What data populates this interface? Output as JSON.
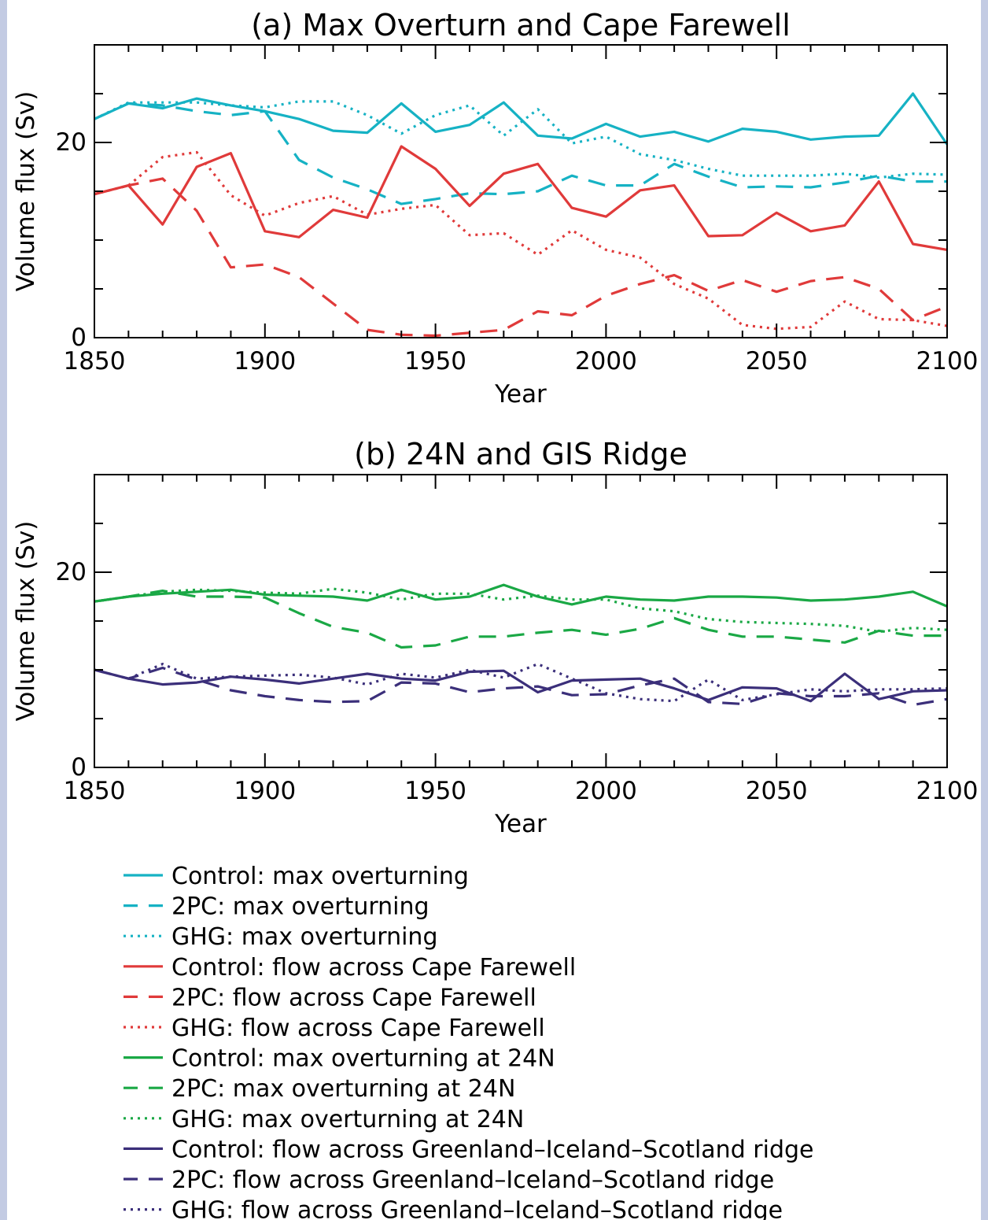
{
  "chart_data": [
    {
      "type": "line",
      "title": "(a) Max Overturn and Cape Farewell",
      "xlabel": "Year",
      "ylabel": "Volume flux (Sv)",
      "xlim": [
        1850,
        2100
      ],
      "ylim": [
        0,
        30
      ],
      "xticks": [
        "1850",
        "1900",
        "1950",
        "2000",
        "2050",
        "2100"
      ],
      "yticks": [
        "0",
        "20"
      ],
      "x": [
        1850,
        1860,
        1870,
        1880,
        1890,
        1900,
        1910,
        1920,
        1930,
        1940,
        1950,
        1960,
        1970,
        1980,
        1990,
        2000,
        2010,
        2020,
        2030,
        2040,
        2050,
        2060,
        2070,
        2080,
        2090,
        2100
      ],
      "series": [
        {
          "name": "Control: max overturning",
          "color": "#16b2c4",
          "dash": "solid",
          "values": [
            22.4,
            24.0,
            23.5,
            24.5,
            23.8,
            23.2,
            22.4,
            21.2,
            21.0,
            24.0,
            21.1,
            21.8,
            24.1,
            20.7,
            20.4,
            21.9,
            20.6,
            21.1,
            20.1,
            21.4,
            21.1,
            20.3,
            20.6,
            20.7,
            25.0,
            19.8
          ]
        },
        {
          "name": "2PC: max overturning",
          "color": "#16b2c4",
          "dash": "dashed",
          "values": [
            22.4,
            24.0,
            23.8,
            23.2,
            22.8,
            23.2,
            18.2,
            16.4,
            15.2,
            13.7,
            14.2,
            14.8,
            14.7,
            15.0,
            16.6,
            15.6,
            15.6,
            17.8,
            16.5,
            15.4,
            15.5,
            15.4,
            15.9,
            16.6,
            16.0,
            16.0
          ]
        },
        {
          "name": "GHG: max overturning",
          "color": "#16b2c4",
          "dash": "dotted",
          "values": [
            22.4,
            24.1,
            24.1,
            24.1,
            23.8,
            23.6,
            24.2,
            24.2,
            22.8,
            20.9,
            22.8,
            23.8,
            20.7,
            23.4,
            19.9,
            20.6,
            18.8,
            18.2,
            17.3,
            16.6,
            16.6,
            16.6,
            16.8,
            16.4,
            16.8,
            16.7
          ]
        },
        {
          "name": "Control: flow across Cape Farewell",
          "color": "#e03a3a",
          "dash": "solid",
          "values": [
            14.7,
            15.6,
            11.6,
            17.5,
            18.9,
            10.9,
            10.3,
            13.1,
            12.3,
            19.6,
            17.3,
            13.5,
            16.8,
            17.8,
            13.3,
            12.4,
            15.1,
            15.6,
            10.4,
            10.5,
            12.8,
            10.9,
            11.5,
            16.0,
            9.6,
            9.0
          ]
        },
        {
          "name": "2PC: flow across Cape Farewell",
          "color": "#e03a3a",
          "dash": "dashed",
          "values": [
            14.7,
            15.6,
            16.3,
            13.0,
            7.2,
            7.5,
            6.2,
            3.5,
            0.8,
            0.3,
            0.2,
            0.5,
            0.8,
            2.7,
            2.3,
            4.3,
            5.5,
            6.4,
            4.8,
            5.9,
            4.7,
            5.8,
            6.2,
            5.0,
            1.8,
            3.2
          ]
        },
        {
          "name": "GHG: flow across Cape Farewell",
          "color": "#e03a3a",
          "dash": "dotted",
          "values": [
            14.7,
            15.6,
            18.5,
            19.0,
            14.6,
            12.5,
            13.8,
            14.5,
            12.6,
            13.2,
            13.6,
            10.5,
            10.7,
            8.5,
            11.0,
            9.0,
            8.2,
            5.5,
            4.0,
            1.3,
            0.9,
            1.1,
            3.7,
            1.9,
            1.8,
            1.2
          ]
        }
      ]
    },
    {
      "type": "line",
      "title": "(b) 24N and GIS Ridge",
      "xlabel": "Year",
      "ylabel": "Volume flux (Sv)",
      "xlim": [
        1850,
        2100
      ],
      "ylim": [
        0,
        30
      ],
      "xticks": [
        "1850",
        "1900",
        "1950",
        "2000",
        "2050",
        "2100"
      ],
      "yticks": [
        "0",
        "20"
      ],
      "x": [
        1850,
        1860,
        1870,
        1880,
        1890,
        1900,
        1910,
        1920,
        1930,
        1940,
        1950,
        1960,
        1970,
        1980,
        1990,
        2000,
        2010,
        2020,
        2030,
        2040,
        2050,
        2060,
        2070,
        2080,
        2090,
        2100
      ],
      "series": [
        {
          "name": "Control: max overturning at 24N",
          "color": "#1aa845",
          "dash": "solid",
          "values": [
            17.0,
            17.5,
            17.8,
            18.0,
            18.2,
            17.7,
            17.6,
            17.5,
            17.1,
            18.2,
            17.2,
            17.5,
            18.7,
            17.5,
            16.7,
            17.5,
            17.2,
            17.1,
            17.5,
            17.5,
            17.4,
            17.1,
            17.2,
            17.5,
            18.0,
            16.5
          ]
        },
        {
          "name": "2PC: max overturning at 24N",
          "color": "#1aa845",
          "dash": "dashed",
          "values": [
            17.0,
            17.5,
            18.1,
            17.5,
            17.5,
            17.4,
            15.8,
            14.4,
            13.8,
            12.3,
            12.5,
            13.4,
            13.4,
            13.8,
            14.1,
            13.6,
            14.2,
            15.3,
            14.1,
            13.4,
            13.4,
            13.1,
            12.8,
            14.0,
            13.5,
            13.5
          ]
        },
        {
          "name": "GHG: max overturning at 24N",
          "color": "#1aa845",
          "dash": "dotted",
          "values": [
            17.0,
            17.5,
            18.0,
            18.2,
            18.1,
            17.9,
            17.8,
            18.3,
            17.9,
            17.2,
            17.8,
            17.8,
            17.2,
            17.6,
            17.2,
            17.2,
            16.3,
            16.0,
            15.2,
            14.9,
            14.8,
            14.7,
            14.5,
            13.9,
            14.3,
            14.1
          ]
        },
        {
          "name": "Control: flow across Greenland–Iceland–Scotland ridge",
          "color": "#3b2f7a",
          "dash": "solid",
          "values": [
            10.0,
            9.1,
            8.5,
            8.7,
            9.3,
            9.0,
            8.6,
            9.1,
            9.6,
            9.1,
            8.9,
            9.8,
            9.9,
            7.7,
            8.9,
            9.0,
            9.1,
            8.1,
            6.9,
            8.2,
            8.1,
            6.8,
            9.6,
            7.0,
            7.8,
            7.9
          ]
        },
        {
          "name": "2PC: flow across Greenland–Iceland–Scotland ridge",
          "color": "#3b2f7a",
          "dash": "dashed",
          "values": [
            10.0,
            9.1,
            10.2,
            9.0,
            7.9,
            7.3,
            6.9,
            6.7,
            6.8,
            8.7,
            8.6,
            7.7,
            8.1,
            8.3,
            7.4,
            7.5,
            8.4,
            9.1,
            6.7,
            6.5,
            7.6,
            7.3,
            7.3,
            7.6,
            6.4,
            7.0
          ]
        },
        {
          "name": "GHG: flow across Greenland–Iceland–Scotland ridge",
          "color": "#3b2f7a",
          "dash": "dotted",
          "values": [
            10.0,
            9.1,
            10.6,
            9.1,
            9.3,
            9.4,
            9.5,
            9.2,
            8.5,
            9.6,
            9.2,
            10.0,
            9.2,
            10.6,
            9.1,
            7.6,
            7.0,
            6.8,
            9.0,
            6.9,
            7.5,
            8.0,
            7.8,
            8.0,
            8.0,
            8.1
          ]
        }
      ]
    }
  ]
}
